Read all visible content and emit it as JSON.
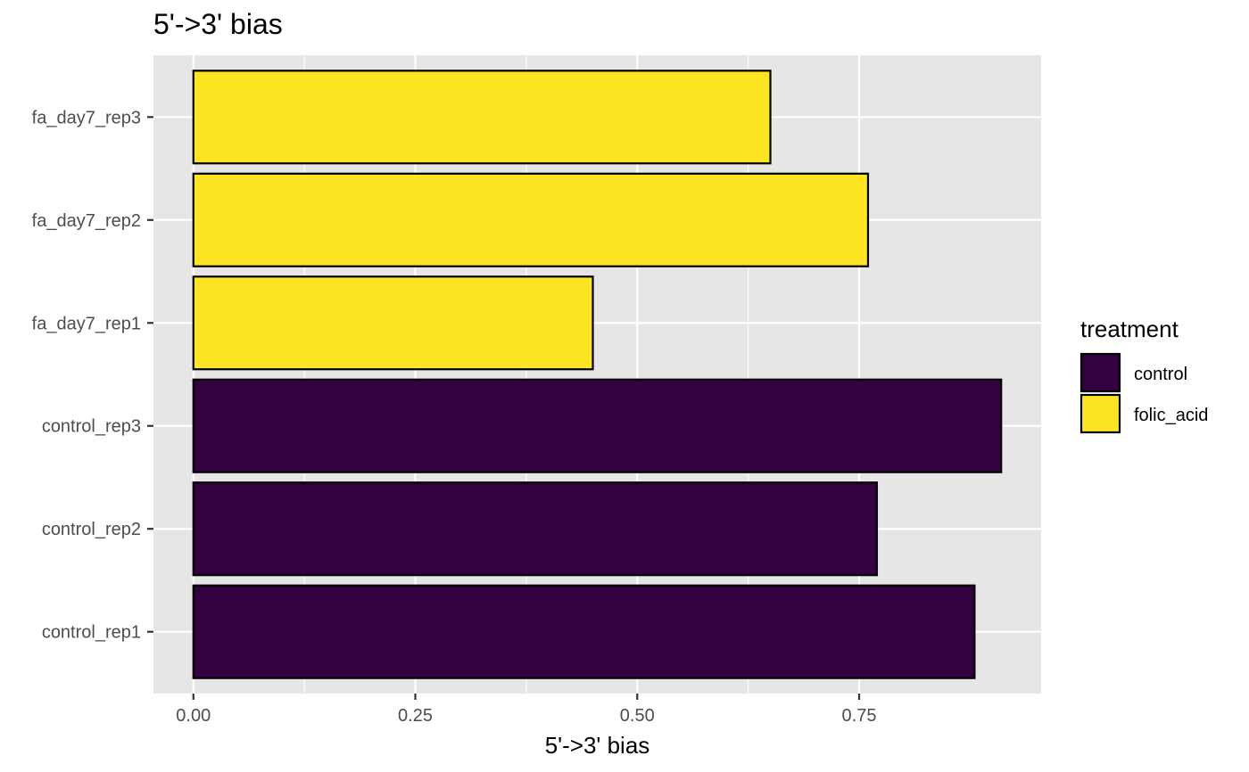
{
  "chart_data": {
    "type": "bar",
    "orientation": "horizontal",
    "title": "5'->3' bias",
    "xlabel": "5'->3' bias",
    "ylabel": "",
    "categories": [
      "control_rep1",
      "control_rep2",
      "control_rep3",
      "fa_day7_rep1",
      "fa_day7_rep2",
      "fa_day7_rep3"
    ],
    "values": [
      0.88,
      0.77,
      0.91,
      0.45,
      0.76,
      0.65
    ],
    "group": [
      "control",
      "control",
      "control",
      "folic_acid",
      "folic_acid",
      "folic_acid"
    ],
    "xlim": [
      -0.045,
      0.955
    ],
    "xticks": [
      0.0,
      0.25,
      0.5,
      0.75
    ],
    "xtick_labels": [
      "0.00",
      "0.25",
      "0.50",
      "0.75"
    ],
    "grid": true,
    "legend": {
      "title": "treatment",
      "position": "right",
      "entries": [
        {
          "label": "control",
          "color": "#350040"
        },
        {
          "label": "folic_acid",
          "color": "#FDE521"
        }
      ]
    },
    "colors": {
      "panel_background": "#E6E6E6",
      "grid_line": "#FFFFFF",
      "bar_outline": "#000000"
    }
  }
}
